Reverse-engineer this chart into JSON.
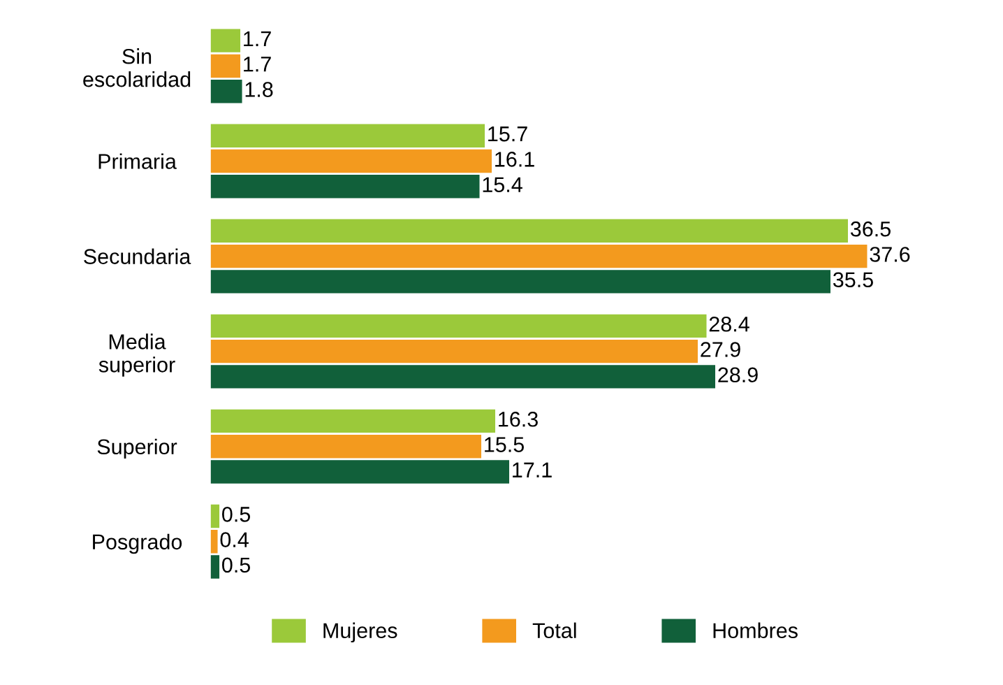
{
  "chart_data": {
    "type": "bar",
    "orientation": "horizontal",
    "data_labels": true,
    "legend": "bottom",
    "grid": false,
    "categories": [
      "Sin\nescolaridad",
      "Primaria",
      "Secundaria",
      "Media\nsuperior",
      "Superior",
      "Posgrado"
    ],
    "series": [
      {
        "name": "Mujeres",
        "color": "#9bc93a",
        "values": [
          1.7,
          15.7,
          36.5,
          28.4,
          16.3,
          0.5
        ]
      },
      {
        "name": "Total",
        "color": "#f39a1e",
        "values": [
          1.7,
          16.1,
          37.6,
          27.9,
          15.5,
          0.4
        ]
      },
      {
        "name": "Hombres",
        "color": "#11603a",
        "values": [
          1.8,
          15.4,
          35.5,
          28.9,
          17.1,
          0.5
        ]
      }
    ]
  }
}
